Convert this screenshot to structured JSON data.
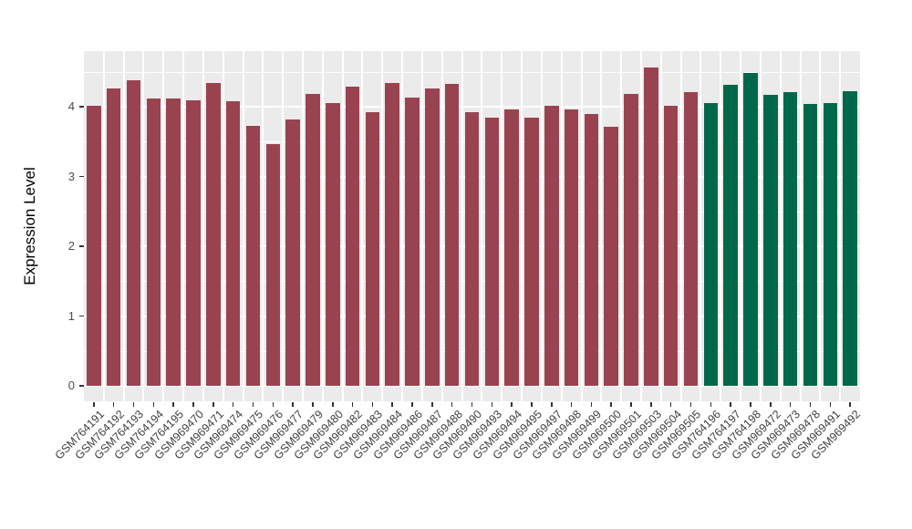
{
  "figure": {
    "background": "#FFFFFF",
    "panel_background": "#EBEBEB",
    "gridline_color": "#FFFFFF",
    "tick_color": "#333333",
    "axis_text_color": "#4D4D4D"
  },
  "chart_data": {
    "type": "bar",
    "title": "",
    "xlabel": "",
    "ylabel": "Expression Level",
    "yticks": [
      0,
      1,
      2,
      3,
      4
    ],
    "ylim": [
      -0.22,
      4.8
    ],
    "grid": "on",
    "legend": "none",
    "categories": [
      "GSM764191",
      "GSM764192",
      "GSM764193",
      "GSM764194",
      "GSM764195",
      "GSM969470",
      "GSM969471",
      "GSM969474",
      "GSM969475",
      "GSM969476",
      "GSM969477",
      "GSM969479",
      "GSM969480",
      "GSM969482",
      "GSM969483",
      "GSM969484",
      "GSM969486",
      "GSM969487",
      "GSM969488",
      "GSM969490",
      "GSM969493",
      "GSM969494",
      "GSM969495",
      "GSM969497",
      "GSM969498",
      "GSM969499",
      "GSM969500",
      "GSM969501",
      "GSM969503",
      "GSM969504",
      "GSM969505",
      "GSM764196",
      "GSM764197",
      "GSM764198",
      "GSM969472",
      "GSM969473",
      "GSM969478",
      "GSM969491",
      "GSM969492"
    ],
    "values": [
      4.02,
      4.26,
      4.38,
      4.12,
      4.12,
      4.1,
      4.34,
      4.08,
      3.73,
      3.47,
      3.82,
      4.18,
      4.05,
      4.29,
      3.92,
      4.34,
      4.13,
      4.27,
      4.33,
      3.93,
      3.85,
      3.96,
      3.85,
      4.02,
      3.96,
      3.9,
      3.71,
      4.19,
      4.57,
      4.02,
      4.21,
      4.05,
      4.32,
      4.48,
      4.17,
      4.21,
      4.04,
      4.05,
      4.23
    ],
    "groups": [
      0,
      0,
      0,
      0,
      0,
      0,
      0,
      0,
      0,
      0,
      0,
      0,
      0,
      0,
      0,
      0,
      0,
      0,
      0,
      0,
      0,
      0,
      0,
      0,
      0,
      0,
      0,
      0,
      0,
      0,
      0,
      1,
      1,
      1,
      1,
      1,
      1,
      1,
      1
    ],
    "palette": [
      "#994350",
      "#00684A"
    ]
  }
}
